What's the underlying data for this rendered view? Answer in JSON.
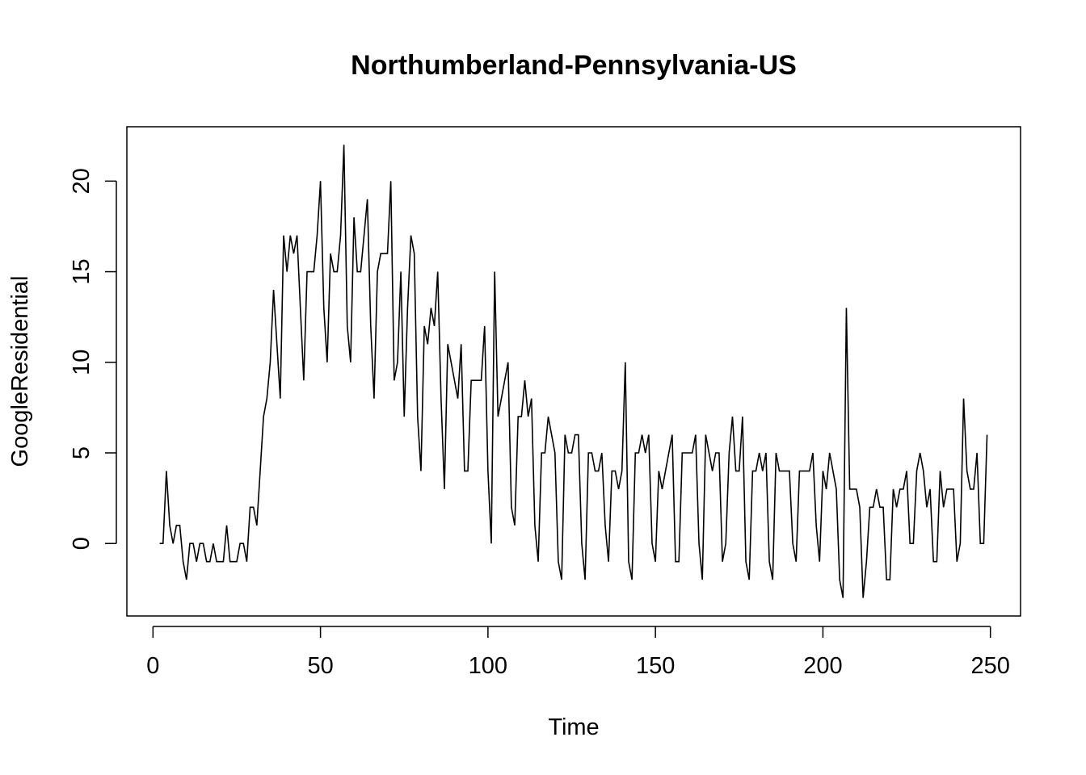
{
  "chart_data": {
    "type": "line",
    "title": "Northumberland-Pennsylvania-US",
    "xlabel": "Time",
    "ylabel": "GoogleResidential",
    "xlim": [
      -7.8,
      259.0
    ],
    "ylim": [
      -4.0,
      23.0
    ],
    "x_ticks": [
      0,
      50,
      100,
      150,
      200,
      250
    ],
    "y_ticks": [
      0,
      5,
      10,
      15,
      20
    ],
    "grid": false,
    "legend": "none",
    "line_color": "#000000",
    "x_start": 2,
    "series": [
      {
        "values": [
          0,
          0,
          4,
          1,
          0,
          1,
          1,
          -1,
          -2,
          0,
          0,
          -1,
          0,
          0,
          -1,
          -1,
          0,
          -1,
          -1,
          -1,
          1,
          -1,
          -1,
          -1,
          0,
          0,
          -1,
          2,
          2,
          1,
          4,
          7,
          8,
          10,
          14,
          11,
          8,
          17,
          15,
          17,
          16,
          17,
          13,
          9,
          15,
          15,
          15,
          17,
          20,
          13,
          10,
          16,
          15,
          15,
          17,
          22,
          12,
          10,
          18,
          15,
          15,
          17,
          19,
          12,
          8,
          15,
          16,
          16,
          16,
          20,
          9,
          10,
          15,
          7,
          13,
          17,
          16,
          7,
          4,
          12,
          11,
          13,
          12,
          15,
          8,
          3,
          11,
          10,
          9,
          8,
          11,
          4,
          4,
          9,
          9,
          9,
          9,
          12,
          4,
          0,
          15,
          7,
          8,
          9,
          10,
          2,
          1,
          7,
          7,
          9,
          7,
          8,
          1,
          -1,
          5,
          5,
          7,
          6,
          5,
          -1,
          -2,
          6,
          5,
          5,
          6,
          6,
          0,
          -2,
          5,
          5,
          4,
          4,
          5,
          1,
          -1,
          4,
          4,
          3,
          4,
          10,
          -1,
          -2,
          5,
          5,
          6,
          5,
          6,
          0,
          -1,
          4,
          3,
          4,
          5,
          6,
          -1,
          -1,
          5,
          5,
          5,
          5,
          6,
          0,
          -2,
          6,
          5,
          4,
          5,
          5,
          -1,
          0,
          5,
          7,
          4,
          4,
          7,
          -1,
          -2,
          4,
          4,
          5,
          4,
          5,
          -1,
          -2,
          5,
          4,
          4,
          4,
          4,
          0,
          -1,
          4,
          4,
          4,
          4,
          5,
          1,
          -1,
          4,
          3,
          5,
          4,
          3,
          -2,
          -3,
          13,
          3,
          3,
          3,
          2,
          -3,
          -1,
          2,
          2,
          3,
          2,
          2,
          -2,
          -2,
          3,
          2,
          3,
          3,
          4,
          0,
          0,
          4,
          5,
          4,
          2,
          3,
          -1,
          -1,
          4,
          2,
          3,
          3,
          3,
          -1,
          0,
          8,
          4,
          3,
          3,
          5,
          0,
          0,
          6
        ]
      }
    ]
  }
}
